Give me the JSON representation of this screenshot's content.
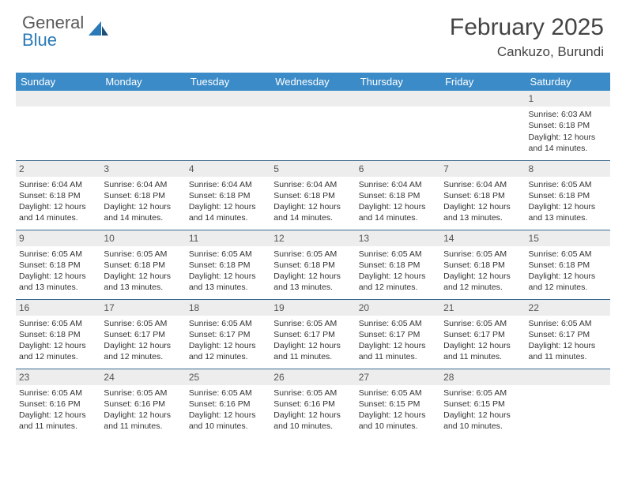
{
  "brand": {
    "line1": "General",
    "line2": "Blue"
  },
  "title": "February 2025",
  "location": "Cankuzo, Burundi",
  "colors": {
    "header_bg": "#3b8bc8",
    "header_text": "#ffffff",
    "row_divider": "#3b6a8f",
    "daynum_bg": "#ededed",
    "text": "#333333",
    "brand_gray": "#5a5a5a",
    "brand_blue": "#2a7ab8"
  },
  "day_headers": [
    "Sunday",
    "Monday",
    "Tuesday",
    "Wednesday",
    "Thursday",
    "Friday",
    "Saturday"
  ],
  "weeks": [
    [
      {
        "n": "",
        "lines": []
      },
      {
        "n": "",
        "lines": []
      },
      {
        "n": "",
        "lines": []
      },
      {
        "n": "",
        "lines": []
      },
      {
        "n": "",
        "lines": []
      },
      {
        "n": "",
        "lines": []
      },
      {
        "n": "1",
        "lines": [
          "Sunrise: 6:03 AM",
          "Sunset: 6:18 PM",
          "Daylight: 12 hours and 14 minutes."
        ]
      }
    ],
    [
      {
        "n": "2",
        "lines": [
          "Sunrise: 6:04 AM",
          "Sunset: 6:18 PM",
          "Daylight: 12 hours and 14 minutes."
        ]
      },
      {
        "n": "3",
        "lines": [
          "Sunrise: 6:04 AM",
          "Sunset: 6:18 PM",
          "Daylight: 12 hours and 14 minutes."
        ]
      },
      {
        "n": "4",
        "lines": [
          "Sunrise: 6:04 AM",
          "Sunset: 6:18 PM",
          "Daylight: 12 hours and 14 minutes."
        ]
      },
      {
        "n": "5",
        "lines": [
          "Sunrise: 6:04 AM",
          "Sunset: 6:18 PM",
          "Daylight: 12 hours and 14 minutes."
        ]
      },
      {
        "n": "6",
        "lines": [
          "Sunrise: 6:04 AM",
          "Sunset: 6:18 PM",
          "Daylight: 12 hours and 14 minutes."
        ]
      },
      {
        "n": "7",
        "lines": [
          "Sunrise: 6:04 AM",
          "Sunset: 6:18 PM",
          "Daylight: 12 hours and 13 minutes."
        ]
      },
      {
        "n": "8",
        "lines": [
          "Sunrise: 6:05 AM",
          "Sunset: 6:18 PM",
          "Daylight: 12 hours and 13 minutes."
        ]
      }
    ],
    [
      {
        "n": "9",
        "lines": [
          "Sunrise: 6:05 AM",
          "Sunset: 6:18 PM",
          "Daylight: 12 hours and 13 minutes."
        ]
      },
      {
        "n": "10",
        "lines": [
          "Sunrise: 6:05 AM",
          "Sunset: 6:18 PM",
          "Daylight: 12 hours and 13 minutes."
        ]
      },
      {
        "n": "11",
        "lines": [
          "Sunrise: 6:05 AM",
          "Sunset: 6:18 PM",
          "Daylight: 12 hours and 13 minutes."
        ]
      },
      {
        "n": "12",
        "lines": [
          "Sunrise: 6:05 AM",
          "Sunset: 6:18 PM",
          "Daylight: 12 hours and 13 minutes."
        ]
      },
      {
        "n": "13",
        "lines": [
          "Sunrise: 6:05 AM",
          "Sunset: 6:18 PM",
          "Daylight: 12 hours and 12 minutes."
        ]
      },
      {
        "n": "14",
        "lines": [
          "Sunrise: 6:05 AM",
          "Sunset: 6:18 PM",
          "Daylight: 12 hours and 12 minutes."
        ]
      },
      {
        "n": "15",
        "lines": [
          "Sunrise: 6:05 AM",
          "Sunset: 6:18 PM",
          "Daylight: 12 hours and 12 minutes."
        ]
      }
    ],
    [
      {
        "n": "16",
        "lines": [
          "Sunrise: 6:05 AM",
          "Sunset: 6:18 PM",
          "Daylight: 12 hours and 12 minutes."
        ]
      },
      {
        "n": "17",
        "lines": [
          "Sunrise: 6:05 AM",
          "Sunset: 6:17 PM",
          "Daylight: 12 hours and 12 minutes."
        ]
      },
      {
        "n": "18",
        "lines": [
          "Sunrise: 6:05 AM",
          "Sunset: 6:17 PM",
          "Daylight: 12 hours and 12 minutes."
        ]
      },
      {
        "n": "19",
        "lines": [
          "Sunrise: 6:05 AM",
          "Sunset: 6:17 PM",
          "Daylight: 12 hours and 11 minutes."
        ]
      },
      {
        "n": "20",
        "lines": [
          "Sunrise: 6:05 AM",
          "Sunset: 6:17 PM",
          "Daylight: 12 hours and 11 minutes."
        ]
      },
      {
        "n": "21",
        "lines": [
          "Sunrise: 6:05 AM",
          "Sunset: 6:17 PM",
          "Daylight: 12 hours and 11 minutes."
        ]
      },
      {
        "n": "22",
        "lines": [
          "Sunrise: 6:05 AM",
          "Sunset: 6:17 PM",
          "Daylight: 12 hours and 11 minutes."
        ]
      }
    ],
    [
      {
        "n": "23",
        "lines": [
          "Sunrise: 6:05 AM",
          "Sunset: 6:16 PM",
          "Daylight: 12 hours and 11 minutes."
        ]
      },
      {
        "n": "24",
        "lines": [
          "Sunrise: 6:05 AM",
          "Sunset: 6:16 PM",
          "Daylight: 12 hours and 11 minutes."
        ]
      },
      {
        "n": "25",
        "lines": [
          "Sunrise: 6:05 AM",
          "Sunset: 6:16 PM",
          "Daylight: 12 hours and 10 minutes."
        ]
      },
      {
        "n": "26",
        "lines": [
          "Sunrise: 6:05 AM",
          "Sunset: 6:16 PM",
          "Daylight: 12 hours and 10 minutes."
        ]
      },
      {
        "n": "27",
        "lines": [
          "Sunrise: 6:05 AM",
          "Sunset: 6:15 PM",
          "Daylight: 12 hours and 10 minutes."
        ]
      },
      {
        "n": "28",
        "lines": [
          "Sunrise: 6:05 AM",
          "Sunset: 6:15 PM",
          "Daylight: 12 hours and 10 minutes."
        ]
      },
      {
        "n": "",
        "lines": []
      }
    ]
  ]
}
